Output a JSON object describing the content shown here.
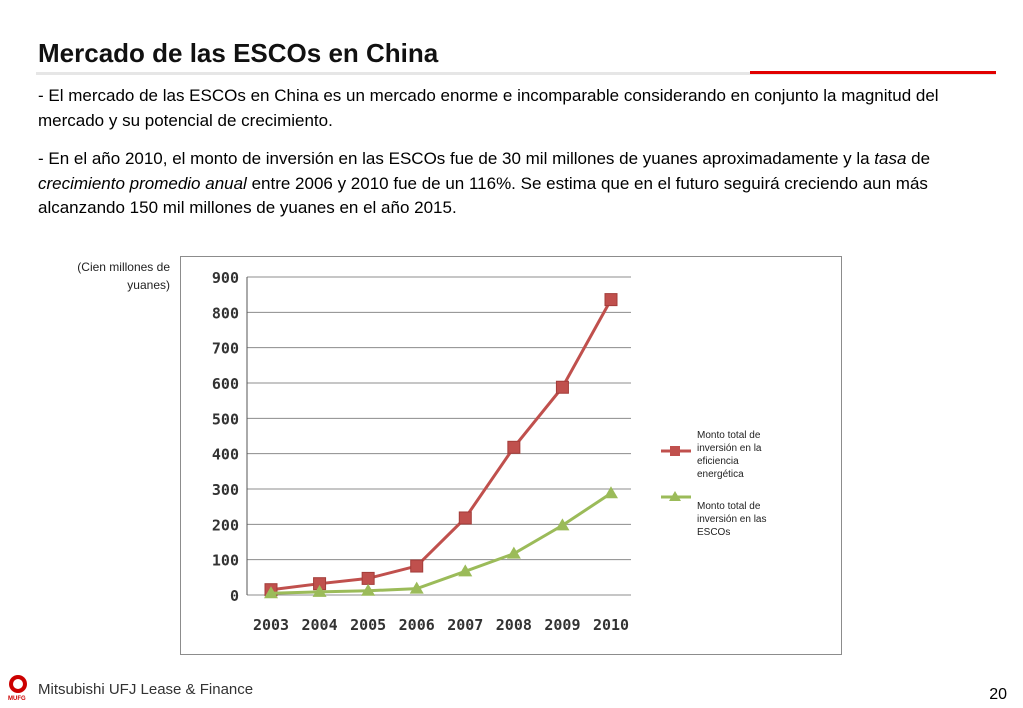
{
  "slide": {
    "title": "Mercado de las ESCOs en China",
    "paragraph1": "- El mercado de las ESCOs en China es un mercado enorme e incomparable considerando en conjunto la magnitud del mercado y su potencial de crecimiento.",
    "paragraph2_a": "- En el año 2010, el monto de inversión en las ESCOs fue de 30 mil millones de yuanes aproximadamente y la ",
    "paragraph2_b": "tasa",
    "paragraph2_c": " de ",
    "paragraph2_d": "crecimiento promedio anual",
    "paragraph2_e": " entre 2006 y 2010 fue de un 116%. Se estima que en el futuro seguirá creciendo aun más alcanzando 150 mil millones de yuanes en el año 2015.",
    "unit_label_1": "(Cien millones de",
    "unit_label_2": "yuanes)",
    "footer_company": "Mitsubishi UFJ Lease & Finance",
    "footer_logo_text": "MUFG",
    "page_number": "20"
  },
  "colors": {
    "accent_red": "#e10000",
    "series1": "#c0504d",
    "series2": "#9bbb59",
    "grid": "#8c8c8c"
  },
  "chart_data": {
    "type": "line",
    "categories": [
      "2003",
      "2004",
      "2005",
      "2006",
      "2007",
      "2008",
      "2009",
      "2010"
    ],
    "series": [
      {
        "name": "Monto total de inversión en la eficiencia energética",
        "marker": "square",
        "values": [
          15,
          32,
          47,
          82,
          218,
          418,
          588,
          836
        ]
      },
      {
        "name": "Monto total de inversión en las ESCOs",
        "marker": "triangle",
        "values": [
          5,
          9,
          12,
          18,
          67,
          117,
          197,
          288
        ]
      }
    ],
    "yticks": [
      0,
      100,
      200,
      300,
      400,
      500,
      600,
      700,
      800,
      900
    ],
    "ylim": [
      0,
      900
    ],
    "grid": true,
    "legend_position": "right"
  }
}
